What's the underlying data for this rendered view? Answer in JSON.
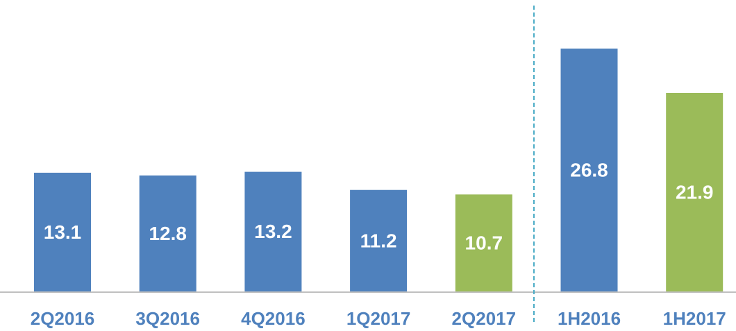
{
  "chart_data": {
    "type": "bar",
    "categories": [
      "2Q2016",
      "3Q2016",
      "4Q2016",
      "1Q2017",
      "2Q2017",
      "1H2016",
      "1H2017"
    ],
    "values": [
      13.1,
      12.8,
      13.2,
      11.2,
      10.7,
      26.8,
      21.9
    ],
    "colors": [
      "#4f81bd",
      "#4f81bd",
      "#4f81bd",
      "#4f81bd",
      "#9bbb59",
      "#4f81bd",
      "#9bbb59"
    ]
  }
}
